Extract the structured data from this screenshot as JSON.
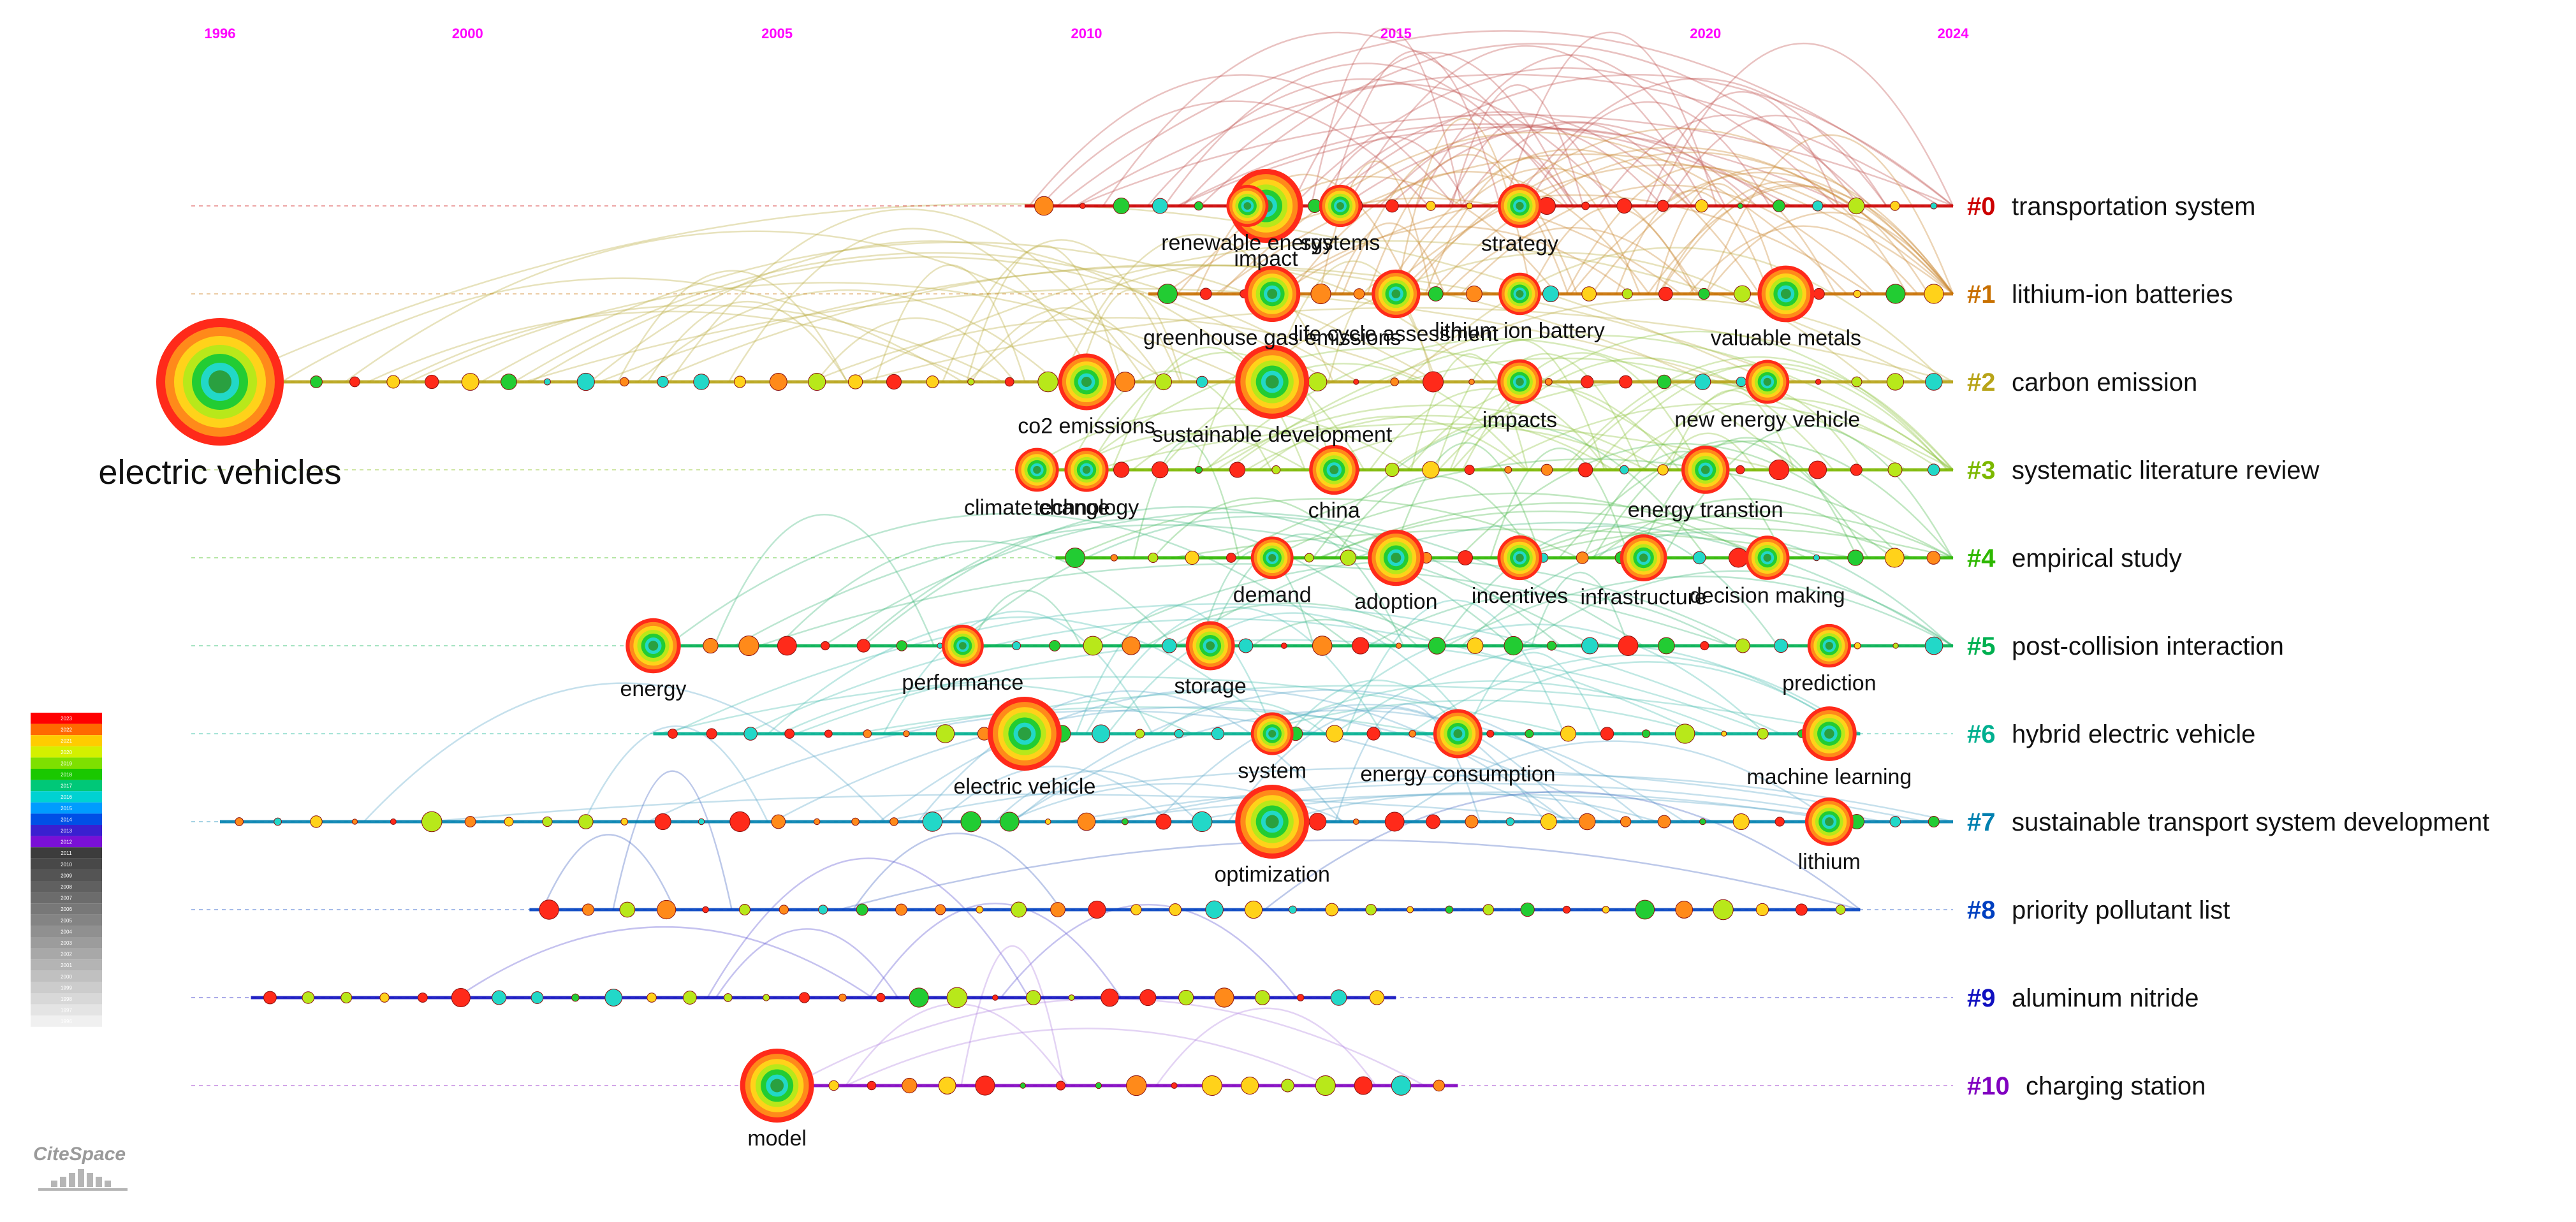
{
  "chart_data": {
    "type": "timeline",
    "software": "CiteSpace",
    "x_range": [
      1996,
      2024
    ],
    "year_ticks": [
      1996,
      2000,
      2005,
      2010,
      2015,
      2020,
      2024
    ],
    "clusters": [
      {
        "id": "#0",
        "label": "transportation system",
        "color": "#cc0000",
        "start": 2009.0,
        "end": 2024.0,
        "arc": "#c0504d",
        "keywords": [
          {
            "term": "impact",
            "year": 2012.9
          },
          {
            "term": "systems",
            "year": 2014.1
          },
          {
            "term": "renewable energy",
            "year": 2012.6
          },
          {
            "term": "strategy",
            "year": 2017.0
          }
        ]
      },
      {
        "id": "#1",
        "label": "lithium-ion batteries",
        "color": "#c87000",
        "start": 2011.0,
        "end": 2024.0,
        "arc": "#c8842a",
        "keywords": [
          {
            "term": "greenhouse gas emissions",
            "year": 2013.0
          },
          {
            "term": "life cycle assessment",
            "year": 2015.0
          },
          {
            "term": "lithium ion battery",
            "year": 2017.0
          },
          {
            "term": "valuable metals",
            "year": 2021.3
          }
        ]
      },
      {
        "id": "#2",
        "label": "carbon emission",
        "color": "#b8a418",
        "start": 1996.0,
        "end": 2024.0,
        "arc": "#b9ad3e",
        "keywords": [
          {
            "term": "electric vehicles",
            "year": 1996.0
          },
          {
            "term": "co2 emissions",
            "year": 2010.0
          },
          {
            "term": "sustainable development",
            "year": 2013.0
          },
          {
            "term": "impacts",
            "year": 2017.0
          },
          {
            "term": "new energy vehicle",
            "year": 2021.0
          }
        ]
      },
      {
        "id": "#3",
        "label": "systematic literature review",
        "color": "#7cb800",
        "start": 2009.0,
        "end": 2024.0,
        "arc": "#8cc43c",
        "keywords": [
          {
            "term": "climate change",
            "year": 2009.2
          },
          {
            "term": "technology",
            "year": 2010.0
          },
          {
            "term": "china",
            "year": 2014.0
          },
          {
            "term": "energy transtion",
            "year": 2020.0
          }
        ]
      },
      {
        "id": "#4",
        "label": "empirical study",
        "color": "#2eb800",
        "start": 2009.5,
        "end": 2024.0,
        "arc": "#4cbb4c",
        "keywords": [
          {
            "term": "demand",
            "year": 2013.0
          },
          {
            "term": "adoption",
            "year": 2015.0
          },
          {
            "term": "incentives",
            "year": 2017.0
          },
          {
            "term": "infrastructure",
            "year": 2019.0
          },
          {
            "term": "decision making",
            "year": 2021.0
          }
        ]
      },
      {
        "id": "#5",
        "label": "post-collision interaction",
        "color": "#00b050",
        "start": 2003.0,
        "end": 2024.0,
        "arc": "#3fb87a",
        "keywords": [
          {
            "term": "energy",
            "year": 2003.0
          },
          {
            "term": "performance",
            "year": 2008.0
          },
          {
            "term": "storage",
            "year": 2012.0
          },
          {
            "term": "prediction",
            "year": 2022.0
          }
        ]
      },
      {
        "id": "#6",
        "label": "hybrid electric vehicle",
        "color": "#00b090",
        "start": 2003.0,
        "end": 2022.5,
        "arc": "#48bcb0",
        "keywords": [
          {
            "term": "electric vehicle",
            "year": 2009.0
          },
          {
            "term": "system",
            "year": 2013.0
          },
          {
            "term": "energy consumption",
            "year": 2016.0
          },
          {
            "term": "machine learning",
            "year": 2022.0
          }
        ]
      },
      {
        "id": "#7",
        "label": "sustainable transport system development",
        "color": "#0080b0",
        "start": 1996.0,
        "end": 2024.0,
        "arc": "#5aa7c8",
        "keywords": [
          {
            "term": "optimization",
            "year": 2013.0
          },
          {
            "term": "lithium",
            "year": 2022.0
          }
        ]
      },
      {
        "id": "#8",
        "label": "priority pollutant list",
        "color": "#0040c0",
        "start": 2001.0,
        "end": 2022.5,
        "arc": "#4060c0",
        "keywords": []
      },
      {
        "id": "#9",
        "label": "aluminum nitride",
        "color": "#1010c0",
        "start": 1996.5,
        "end": 2015.0,
        "arc": "#5a50d0",
        "keywords": []
      },
      {
        "id": "#10",
        "label": "charging station",
        "color": "#8000c0",
        "start": 2005.0,
        "end": 2016.0,
        "arc": "#b080e0",
        "keywords": [
          {
            "term": "model",
            "year": 2005.0
          }
        ]
      }
    ],
    "legend_years": [
      2023,
      2022,
      2021,
      2020,
      2019,
      2018,
      2017,
      2016,
      2015,
      2014,
      2013,
      2012,
      2011,
      2010,
      2009,
      2008,
      2007,
      2006,
      2005,
      2004,
      2003,
      2002,
      2001,
      2000,
      1999,
      1998,
      1997,
      1996
    ]
  },
  "logo": {
    "text": "CiteSpace"
  }
}
